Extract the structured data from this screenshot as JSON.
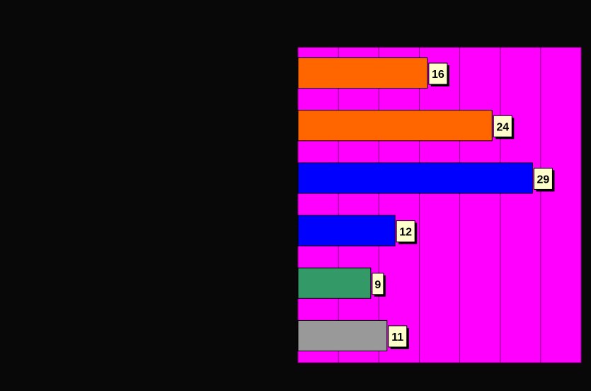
{
  "chart_data": {
    "type": "bar",
    "orientation": "horizontal",
    "categories": [
      "",
      "",
      "",
      "",
      "",
      ""
    ],
    "values": [
      16,
      24,
      29,
      12,
      9,
      11
    ],
    "bar_colors": [
      "#ff6600",
      "#ff6600",
      "#0000ff",
      "#0000ff",
      "#339966",
      "#999999"
    ],
    "xlim": [
      0,
      35
    ],
    "grid": true,
    "legend": "none",
    "title": "",
    "xlabel": "",
    "ylabel": "",
    "colors": {
      "background": "#080808",
      "plot_background": "#ff00ff",
      "gridline": "#800080",
      "label_background": "#ffffcc"
    }
  }
}
